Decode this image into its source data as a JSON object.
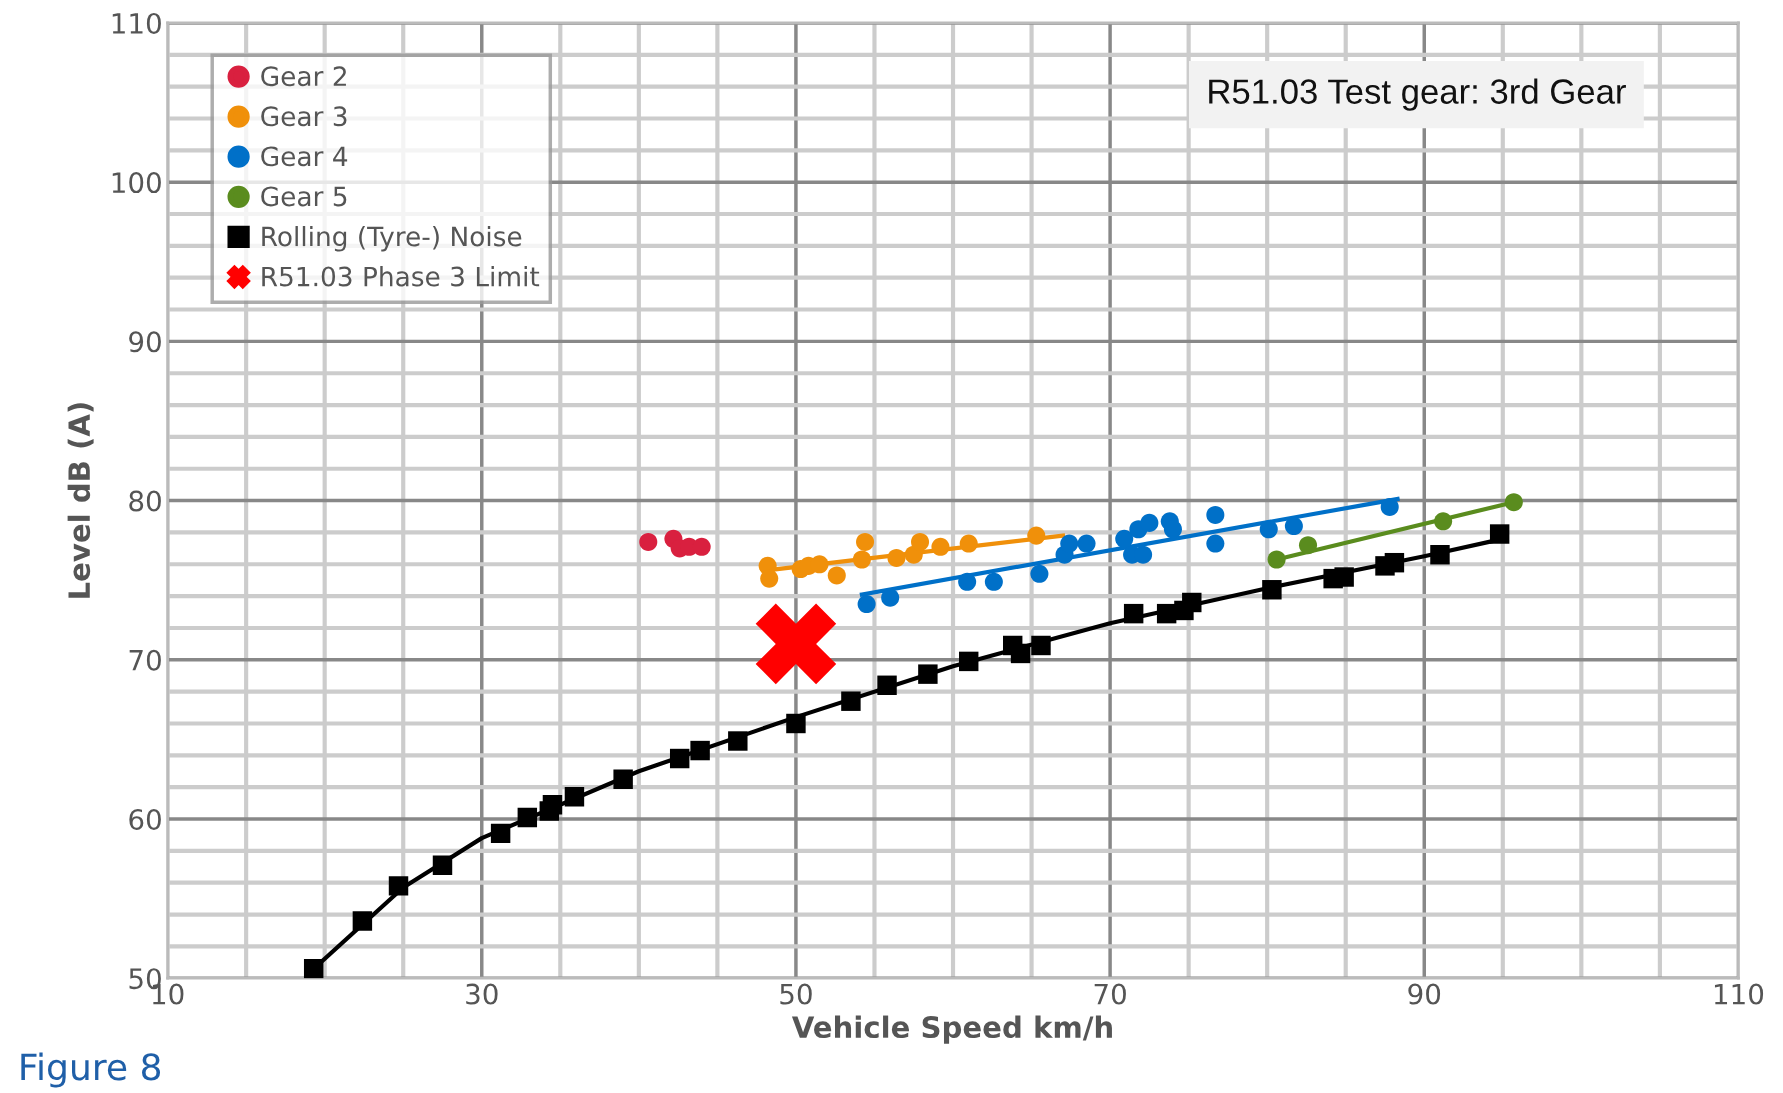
{
  "chart_data": {
    "type": "scatter",
    "xlabel": "Vehicle Speed km/h",
    "ylabel": "Level dB (A)",
    "annotations": [
      "R51.03 Test gear: 3rd Gear",
      "Figure 8"
    ],
    "xlim": [
      10,
      110
    ],
    "ylim": [
      50,
      110
    ],
    "xticks": [
      10,
      {
        "value": 15,
        "label": null
      },
      {
        "value": 20,
        "label": null
      },
      {
        "value": 25,
        "label": null
      },
      30,
      {
        "value": 35,
        "label": null
      },
      {
        "value": 40,
        "label": null
      },
      {
        "value": 45,
        "label": null
      },
      50,
      {
        "value": 55,
        "label": null
      },
      {
        "value": 60,
        "label": null
      },
      {
        "value": 65,
        "label": null
      },
      70,
      {
        "value": 75,
        "label": null
      },
      {
        "value": 80,
        "label": null
      },
      {
        "value": 85,
        "label": null
      },
      90,
      {
        "value": 95,
        "label": null
      },
      {
        "value": 100,
        "label": null
      },
      {
        "value": 105,
        "label": null
      },
      110
    ],
    "yticks": [
      50,
      {
        "value": 52,
        "label": null
      },
      {
        "value": 54,
        "label": null
      },
      {
        "value": 56,
        "label": null
      },
      {
        "value": 58,
        "label": null
      },
      60,
      {
        "value": 62,
        "label": null
      },
      {
        "value": 64,
        "label": null
      },
      {
        "value": 66,
        "label": null
      },
      {
        "value": 68,
        "label": null
      },
      70,
      {
        "value": 72,
        "label": null
      },
      {
        "value": 74,
        "label": null
      },
      {
        "value": 76,
        "label": null
      },
      {
        "value": 78,
        "label": null
      },
      80,
      {
        "value": 82,
        "label": null
      },
      {
        "value": 84,
        "label": null
      },
      {
        "value": 86,
        "label": null
      },
      {
        "value": 88,
        "label": null
      },
      90,
      {
        "value": 92,
        "label": null
      },
      {
        "value": 94,
        "label": null
      },
      {
        "value": 96,
        "label": null
      },
      {
        "value": 98,
        "label": null
      },
      100,
      {
        "value": 102,
        "label": null
      },
      {
        "value": 104,
        "label": null
      },
      {
        "value": 106,
        "label": null
      },
      {
        "value": 108,
        "label": null
      },
      110
    ],
    "grid": true,
    "legend": "top left",
    "marker": "circle",
    "series": [
      {
        "name": "Gear 2",
        "color": "#d9203f",
        "x": [
          40.6,
          42.2,
          42.6,
          43.2,
          44.0
        ],
        "values": [
          77.4,
          77.6,
          77.0,
          77.1,
          77.1
        ]
      },
      {
        "name": "Gear 3",
        "color": "#f0900a",
        "x": [
          48.2,
          48.3,
          50.3,
          50.8,
          51.5,
          52.6,
          54.2,
          54.4,
          56.4,
          57.5,
          57.9,
          59.2,
          61.0,
          65.3
        ],
        "values": [
          75.9,
          75.1,
          75.7,
          75.9,
          76.0,
          75.3,
          76.3,
          77.4,
          76.4,
          76.6,
          77.4,
          77.1,
          77.3,
          77.8
        ]
      },
      {
        "name": "Gear 4",
        "color": "#0070c8",
        "x": [
          54.5,
          56.0,
          60.9,
          62.6,
          65.5,
          67.1,
          67.4,
          68.5,
          70.9,
          71.4,
          72.1,
          71.8,
          72.5,
          73.8,
          74.0,
          76.7,
          76.7,
          80.1,
          81.7,
          87.8
        ],
        "values": [
          73.5,
          73.9,
          74.9,
          74.9,
          75.4,
          76.6,
          77.3,
          77.3,
          77.6,
          76.6,
          76.6,
          78.2,
          78.6,
          78.7,
          78.2,
          79.1,
          77.3,
          78.2,
          78.4,
          79.6
        ]
      },
      {
        "name": "Gear 5",
        "color": "#5a8c1e",
        "x": [
          80.6,
          82.6,
          91.2,
          95.7
        ],
        "values": [
          76.3,
          77.2,
          78.7,
          79.9
        ]
      },
      {
        "name": "Rolling (Tyre-) Noise",
        "color": "#000000",
        "marker": "square",
        "x": [
          19.3,
          22.4,
          24.7,
          27.5,
          31.2,
          32.9,
          34.3,
          34.5,
          35.9,
          39.0,
          42.6,
          43.9,
          46.3,
          50.0,
          53.5,
          55.8,
          58.4,
          61.0,
          63.8,
          64.3,
          65.6,
          71.5,
          73.6,
          74.7,
          75.2,
          80.3,
          84.2,
          84.9,
          87.5,
          88.1,
          91.0,
          94.8
        ],
        "values": [
          50.6,
          53.6,
          55.8,
          57.1,
          59.1,
          60.1,
          60.5,
          60.9,
          61.4,
          62.5,
          63.8,
          64.3,
          64.9,
          66.0,
          67.4,
          68.4,
          69.1,
          69.9,
          70.9,
          70.4,
          70.9,
          72.9,
          72.9,
          73.1,
          73.6,
          74.4,
          75.1,
          75.2,
          75.9,
          76.1,
          76.6,
          77.9
        ]
      },
      {
        "name": "R51.03 Phase 3 Limit",
        "color": "#ff0000",
        "marker": "cross",
        "x": [
          50
        ],
        "values": [
          71
        ]
      },
      {
        "type": "line",
        "color": "#f0900a",
        "marker": "none",
        "x": [
          48.0,
          67.0
        ],
        "values": [
          75.6,
          77.8
        ]
      },
      {
        "type": "line",
        "color": "#0070c8",
        "marker": "none",
        "x": [
          54.2,
          88.3
        ],
        "values": [
          74.1,
          80.1
        ]
      },
      {
        "type": "line",
        "color": "#5a8c1e",
        "marker": "none",
        "x": [
          80.6,
          95.7
        ],
        "values": [
          76.3,
          79.9
        ]
      },
      {
        "type": "line",
        "color": "#000000",
        "marker": "none",
        "x": [
          19.3,
          25,
          30,
          40,
          50,
          60,
          70,
          80,
          90,
          95
        ],
        "values": [
          50.6,
          55.7,
          58.8,
          63.0,
          66.4,
          69.6,
          72.3,
          74.5,
          76.5,
          77.6
        ]
      }
    ]
  }
}
